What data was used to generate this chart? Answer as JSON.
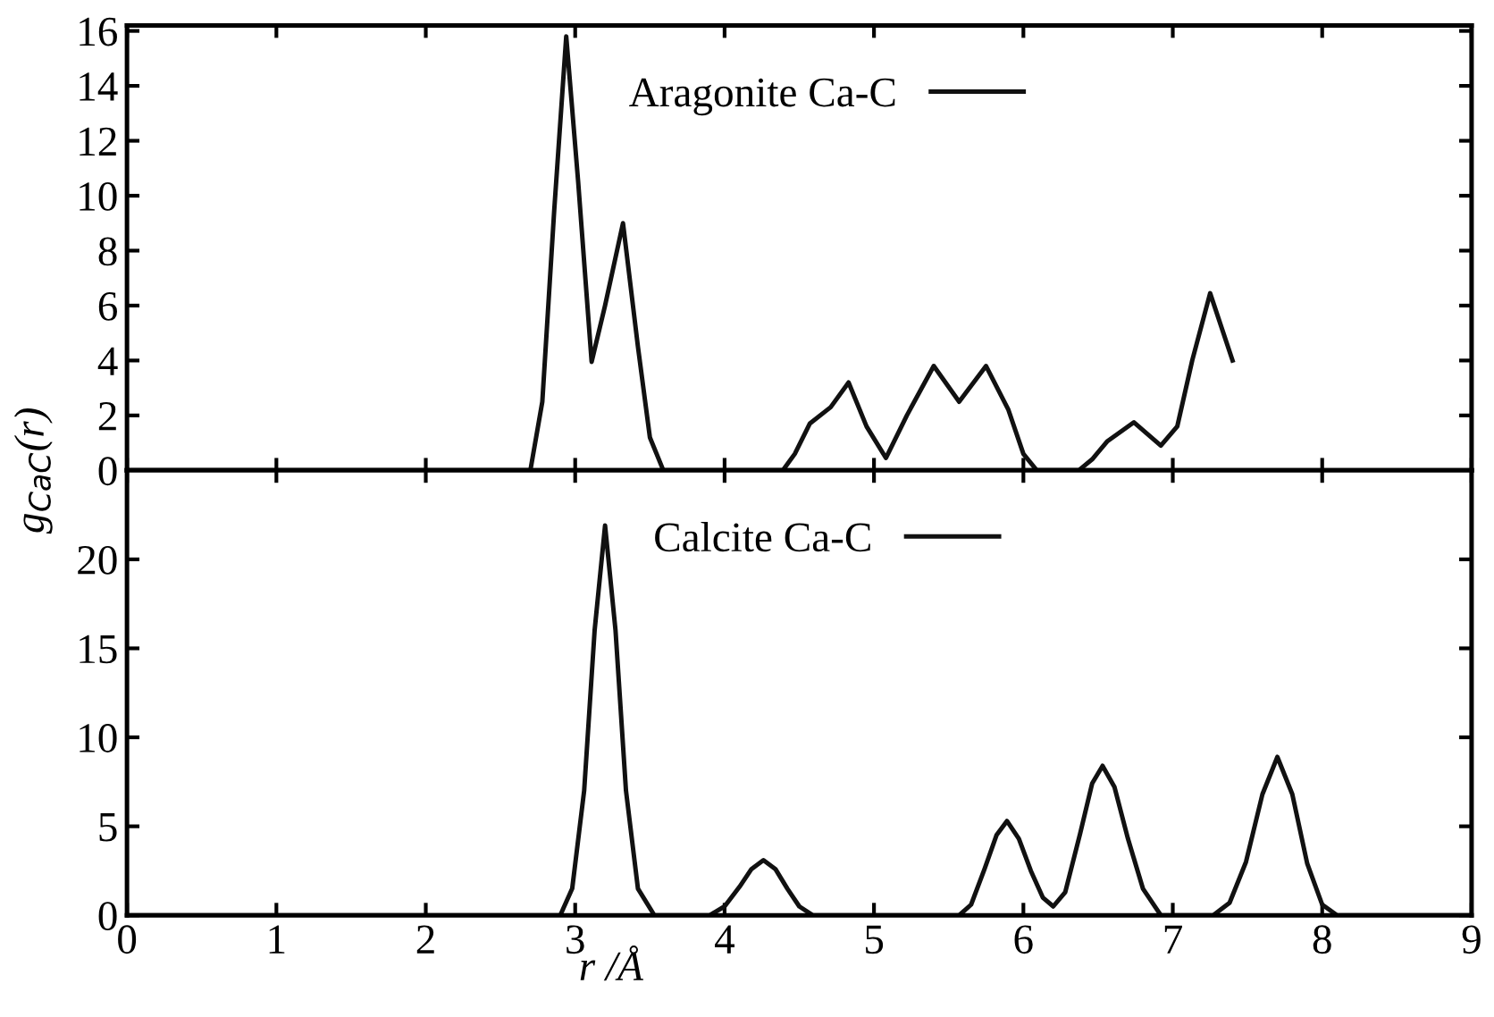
{
  "chart_data": [
    {
      "type": "line",
      "xlim": [
        0,
        9
      ],
      "xticks": [
        0,
        1,
        2,
        3,
        4,
        5,
        6,
        7,
        8,
        9
      ],
      "ylim": [
        0,
        16.2
      ],
      "yticks": [
        0,
        2,
        4,
        6,
        8,
        10,
        12,
        14,
        16
      ],
      "tick_labels": "y",
      "legend": "top",
      "grid": false,
      "series": [
        {
          "name": "Aragonite Ca-C",
          "color": "#111111",
          "x": [
            0,
            2.6,
            2.7,
            2.78,
            2.86,
            2.94,
            3.02,
            3.11,
            3.2,
            3.32,
            3.42,
            3.5,
            3.59,
            4.39,
            4.47,
            4.57,
            4.71,
            4.83,
            4.95,
            5.08,
            5.22,
            5.4,
            5.57,
            5.75,
            5.9,
            6.0,
            6.09,
            6.37,
            6.46,
            6.56,
            6.74,
            6.92,
            7.03,
            7.13,
            7.25,
            7.4
          ],
          "values": [
            0,
            0,
            0,
            2.5,
            9.5,
            15.8,
            10.5,
            3.95,
            6,
            9.0,
            4.5,
            1.2,
            0,
            0,
            0.6,
            1.7,
            2.3,
            3.2,
            1.6,
            0.45,
            2.0,
            3.8,
            2.5,
            3.8,
            2.2,
            0.6,
            0,
            0,
            0.4,
            1.05,
            1.75,
            0.9,
            1.6,
            4.0,
            6.45,
            4.0
          ]
        }
      ]
    },
    {
      "type": "line",
      "xlim": [
        0,
        9
      ],
      "xticks": [
        0,
        1,
        2,
        3,
        4,
        5,
        6,
        7,
        8,
        9
      ],
      "ylim": [
        0,
        25
      ],
      "yticks": [
        0,
        5,
        10,
        15,
        20
      ],
      "xlabel": "r /Å",
      "ylabel": "g$_{CaC}$(r)",
      "legend": "top",
      "grid": false,
      "series": [
        {
          "name": "Calcite Ca-C",
          "color": "#111111",
          "x": [
            0,
            2.9,
            2.98,
            3.06,
            3.13,
            3.2,
            3.27,
            3.34,
            3.42,
            3.53,
            3.9,
            4.0,
            4.1,
            4.18,
            4.26,
            4.34,
            4.42,
            4.5,
            4.59,
            5.57,
            5.65,
            5.74,
            5.82,
            5.89,
            5.97,
            6.05,
            6.13,
            6.2,
            6.28,
            6.38,
            6.46,
            6.53,
            6.61,
            6.7,
            6.8,
            6.92,
            7.27,
            7.38,
            7.49,
            7.6,
            7.7,
            7.8,
            7.9,
            8.0,
            8.1,
            9
          ],
          "values": [
            0,
            0,
            1.5,
            7,
            16,
            21.9,
            16,
            7,
            1.5,
            0,
            0,
            0.5,
            1.6,
            2.6,
            3.1,
            2.6,
            1.5,
            0.5,
            0,
            0,
            0.6,
            2.6,
            4.5,
            5.3,
            4.3,
            2.5,
            1.0,
            0.5,
            1.3,
            4.6,
            7.4,
            8.4,
            7.2,
            4.3,
            1.5,
            0,
            0,
            0.7,
            3.0,
            6.8,
            8.9,
            6.8,
            2.9,
            0.6,
            0,
            0
          ]
        }
      ]
    }
  ]
}
